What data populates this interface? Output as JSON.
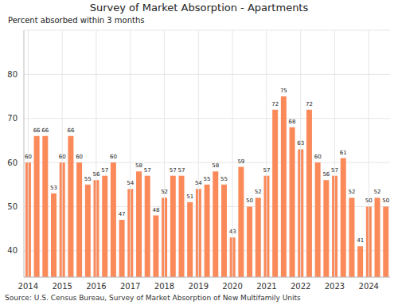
{
  "chart_data": {
    "type": "bar",
    "title": "Survey of Market Absorption - Apartments",
    "subtitle": "Percent absorbed within 3 months",
    "source": "Source: U.S. Census Bureau, Survey of Market Absorption of New Multifamily Units",
    "categories": [
      "2014",
      null,
      null,
      null,
      "2015",
      null,
      null,
      null,
      "2016",
      null,
      null,
      null,
      "2017",
      null,
      null,
      null,
      "2018",
      null,
      null,
      null,
      "2019",
      null,
      null,
      null,
      "2020",
      null,
      null,
      null,
      "2021",
      null,
      null,
      null,
      "2022",
      null,
      null,
      null,
      "2023",
      null,
      null,
      null,
      "2024",
      null,
      null
    ],
    "values": [
      60,
      66,
      66,
      53,
      60,
      66,
      60,
      55,
      56,
      57,
      60,
      47,
      54,
      58,
      57,
      48,
      52,
      57,
      57,
      51,
      54,
      55,
      58,
      55,
      43,
      59,
      50,
      52,
      57,
      72,
      75,
      68,
      63,
      72,
      60,
      56,
      57,
      61,
      52,
      41,
      50,
      52,
      50
    ],
    "color": "#fb8a5b",
    "ylim": [
      34,
      90
    ],
    "yticks": [
      40,
      50,
      60,
      70,
      80
    ],
    "grid": true,
    "data_labels": true
  }
}
